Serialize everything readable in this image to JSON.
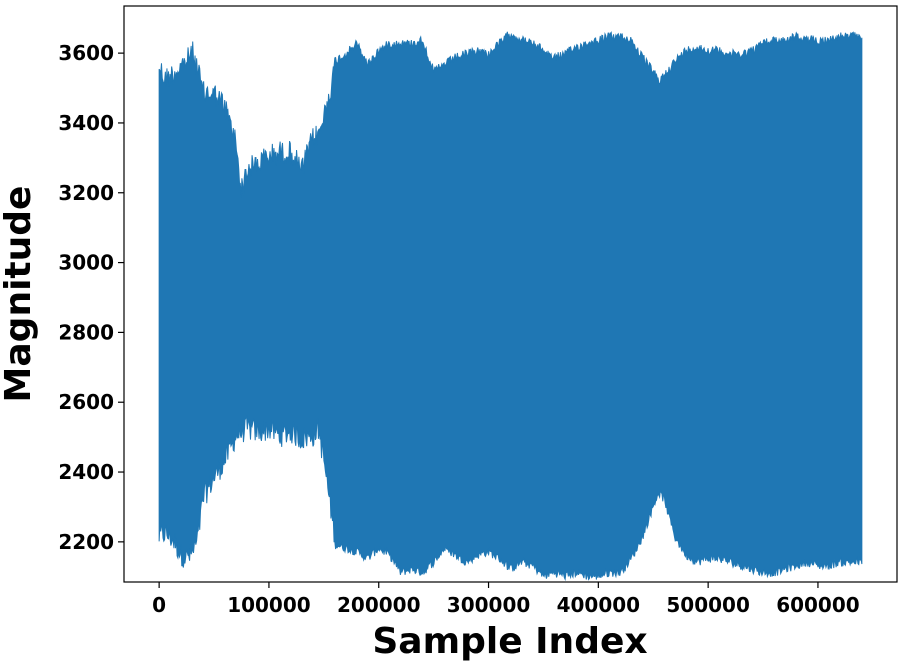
{
  "chart_data": {
    "type": "area",
    "title": "",
    "xlabel": "Sample Index",
    "ylabel": "Magnitude",
    "xlim": [
      -32000,
      672000
    ],
    "ylim": [
      2085,
      3735
    ],
    "xticks": [
      0,
      100000,
      200000,
      300000,
      400000,
      500000,
      600000
    ],
    "xtick_labels": [
      "0",
      "100000",
      "200000",
      "300000",
      "400000",
      "500000",
      "600000"
    ],
    "yticks": [
      2200,
      2400,
      2600,
      2800,
      3000,
      3200,
      3400,
      3600
    ],
    "ytick_labels": [
      "2200",
      "2400",
      "2600",
      "2800",
      "3000",
      "3200",
      "3400",
      "3600"
    ],
    "grid": false,
    "legend": "none",
    "series": [
      {
        "color": "#1f77b4",
        "x": [
          0,
          5000,
          10000,
          15000,
          20000,
          25000,
          30000,
          35000,
          40000,
          50000,
          60000,
          70000,
          75000,
          80000,
          90000,
          100000,
          110000,
          120000,
          130000,
          140000,
          145000,
          150000,
          160000,
          170000,
          180000,
          190000,
          200000,
          210000,
          220000,
          230000,
          240000,
          250000,
          260000,
          270000,
          280000,
          290000,
          300000,
          310000,
          320000,
          330000,
          340000,
          350000,
          360000,
          370000,
          380000,
          390000,
          400000,
          410000,
          420000,
          430000,
          440000,
          450000,
          455000,
          460000,
          470000,
          480000,
          490000,
          500000,
          510000,
          520000,
          530000,
          540000,
          550000,
          560000,
          570000,
          580000,
          590000,
          600000,
          610000,
          620000,
          630000,
          640000
        ],
        "upper": [
          3600,
          3560,
          3570,
          3580,
          3600,
          3610,
          3640,
          3590,
          3520,
          3520,
          3480,
          3380,
          3240,
          3300,
          3320,
          3340,
          3350,
          3350,
          3300,
          3390,
          3400,
          3450,
          3590,
          3610,
          3640,
          3580,
          3620,
          3640,
          3640,
          3640,
          3650,
          3560,
          3580,
          3600,
          3610,
          3620,
          3610,
          3640,
          3670,
          3650,
          3640,
          3620,
          3600,
          3610,
          3630,
          3640,
          3650,
          3660,
          3660,
          3650,
          3600,
          3560,
          3530,
          3550,
          3590,
          3620,
          3630,
          3620,
          3620,
          3610,
          3610,
          3620,
          3640,
          3650,
          3650,
          3660,
          3650,
          3650,
          3650,
          3660,
          3660,
          3660
        ],
        "lower": [
          2180,
          2190,
          2180,
          2160,
          2130,
          2120,
          2130,
          2170,
          2290,
          2350,
          2400,
          2470,
          2480,
          2490,
          2480,
          2490,
          2470,
          2480,
          2460,
          2470,
          2490,
          2400,
          2180,
          2170,
          2160,
          2140,
          2170,
          2150,
          2100,
          2110,
          2100,
          2130,
          2170,
          2150,
          2130,
          2150,
          2160,
          2140,
          2110,
          2130,
          2120,
          2090,
          2100,
          2090,
          2100,
          2090,
          2090,
          2100,
          2100,
          2140,
          2200,
          2290,
          2330,
          2310,
          2200,
          2150,
          2130,
          2140,
          2140,
          2130,
          2120,
          2110,
          2100,
          2100,
          2110,
          2120,
          2130,
          2120,
          2120,
          2130,
          2130,
          2130
        ]
      }
    ]
  }
}
